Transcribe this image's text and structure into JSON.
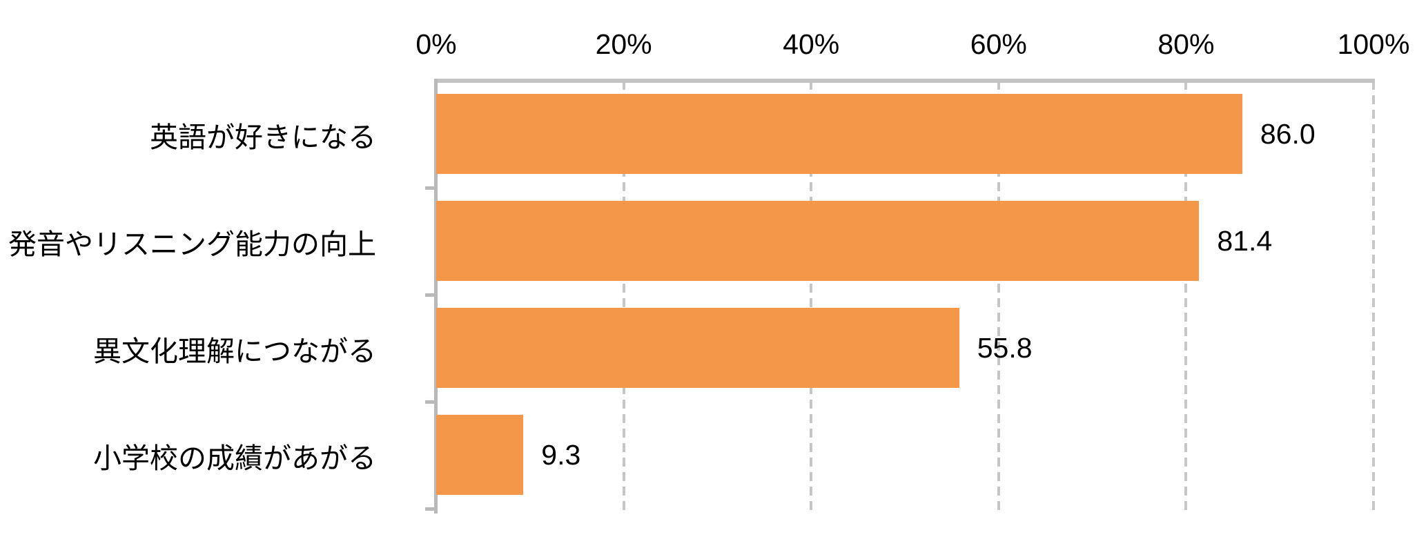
{
  "chart_data": {
    "type": "bar",
    "orientation": "horizontal",
    "title": "",
    "xlabel": "",
    "ylabel": "",
    "categories": [
      "英語が好きになる",
      "発音やリスニング能力の向上",
      "異文化理解につながる",
      "小学校の成績があがる"
    ],
    "values": [
      86.0,
      81.4,
      55.8,
      9.3
    ],
    "data_labels": [
      "86.0",
      "81.4",
      "55.8",
      "9.3"
    ],
    "x_ticks": [
      0,
      20,
      40,
      60,
      80,
      100
    ],
    "x_tick_labels": [
      "0%",
      "20%",
      "40%",
      "60%",
      "80%",
      "100%"
    ],
    "xlim": [
      0,
      100
    ],
    "axis_position": "top",
    "grid": "vertical-dashed",
    "legend": "none",
    "colors": {
      "bar_fill": "#f59749",
      "axis_line": "#c3c3c3",
      "y_axis_line": "#b9b9b9",
      "gridline": "#c6c6c6",
      "text": "#000000",
      "background": "#ffffff"
    }
  }
}
